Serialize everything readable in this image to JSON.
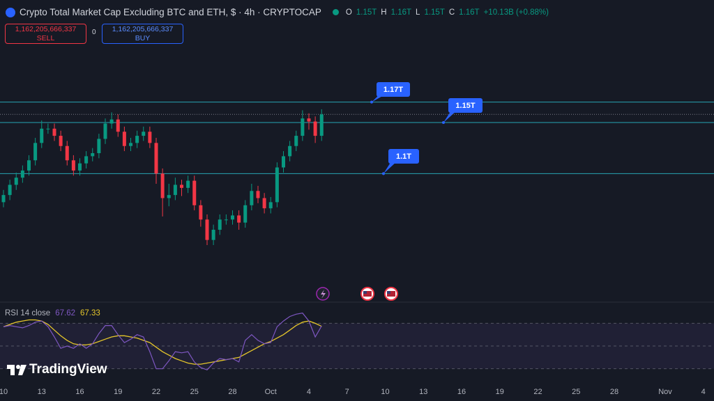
{
  "header": {
    "title": "Crypto Total Market Cap Excluding BTC and ETH, $ · 4h · CRYPTOCAP",
    "ohlc": [
      {
        "key": "O",
        "value": "1.15T"
      },
      {
        "key": "H",
        "value": "1.16T"
      },
      {
        "key": "L",
        "value": "1.15T"
      },
      {
        "key": "C",
        "value": "1.16T"
      }
    ],
    "change": "+10.13B (+0.88%)",
    "sell": {
      "price": "1,162,205,666,337",
      "label": "SELL"
    },
    "spread": "0",
    "buy": {
      "price": "1,162,205,666,337",
      "label": "BUY"
    }
  },
  "brand": "TradingView",
  "chart_data": {
    "type": "candlestick",
    "xlim": [
      -0.274,
      55.836
    ],
    "xticks": [
      {
        "value": 0,
        "label": "10"
      },
      {
        "value": 3,
        "label": "13"
      },
      {
        "value": 6,
        "label": "16"
      },
      {
        "value": 9,
        "label": "19"
      },
      {
        "value": 12,
        "label": "22"
      },
      {
        "value": 15,
        "label": "25"
      },
      {
        "value": 18,
        "label": "28"
      },
      {
        "value": 21,
        "label": "Oct"
      },
      {
        "value": 24,
        "label": "4"
      },
      {
        "value": 27,
        "label": "7"
      },
      {
        "value": 30,
        "label": "10"
      },
      {
        "value": 33,
        "label": "13"
      },
      {
        "value": 36,
        "label": "16"
      },
      {
        "value": 39,
        "label": "19"
      },
      {
        "value": 42,
        "label": "22"
      },
      {
        "value": 45,
        "label": "25"
      },
      {
        "value": 48,
        "label": "28"
      },
      {
        "value": 52,
        "label": "Nov"
      },
      {
        "value": 55,
        "label": "4"
      }
    ],
    "ylim": [
      0.97,
      1.27
    ],
    "up_color": "#089981",
    "down_color": "#f23645",
    "candles": {
      "x": [
        0,
        0.5,
        1,
        1.5,
        2,
        2.5,
        3,
        3.5,
        4,
        4.5,
        5,
        5.5,
        6,
        6.5,
        7,
        7.5,
        8,
        8.5,
        9,
        9.5,
        10,
        10.5,
        11,
        11.5,
        12,
        12.5,
        13,
        13.5,
        14,
        14.5,
        15,
        15.5,
        16,
        16.5,
        17,
        17.5,
        18,
        18.5,
        19,
        19.5,
        20,
        20.5,
        21,
        21.5,
        22,
        22.5,
        23,
        23.5,
        24,
        24.5,
        25
      ],
      "open": [
        1.072,
        1.079,
        1.089,
        1.096,
        1.103,
        1.113,
        1.13,
        1.144,
        1.144,
        1.137,
        1.127,
        1.113,
        1.103,
        1.11,
        1.117,
        1.12,
        1.134,
        1.149,
        1.153,
        1.141,
        1.127,
        1.13,
        1.137,
        1.141,
        1.13,
        1.1,
        1.076,
        1.079,
        1.089,
        1.086,
        1.093,
        1.069,
        1.055,
        1.035,
        1.045,
        1.055,
        1.055,
        1.059,
        1.052,
        1.069,
        1.083,
        1.076,
        1.066,
        1.072,
        1.106,
        1.117,
        1.127,
        1.137,
        1.154,
        1.151,
        1.137
      ],
      "high": [
        1.084,
        1.094,
        1.101,
        1.108,
        1.118,
        1.135,
        1.152,
        1.149,
        1.149,
        1.142,
        1.132,
        1.118,
        1.115,
        1.122,
        1.125,
        1.139,
        1.154,
        1.16,
        1.158,
        1.146,
        1.135,
        1.142,
        1.146,
        1.146,
        1.135,
        1.105,
        1.09,
        1.096,
        1.094,
        1.098,
        1.098,
        1.074,
        1.06,
        1.05,
        1.06,
        1.06,
        1.064,
        1.064,
        1.074,
        1.09,
        1.088,
        1.081,
        1.077,
        1.111,
        1.122,
        1.132,
        1.142,
        1.162,
        1.159,
        1.156,
        1.163
      ],
      "low": [
        1.067,
        1.074,
        1.084,
        1.091,
        1.098,
        1.108,
        1.125,
        1.139,
        1.132,
        1.122,
        1.108,
        1.098,
        1.098,
        1.105,
        1.112,
        1.115,
        1.129,
        1.144,
        1.136,
        1.122,
        1.122,
        1.125,
        1.132,
        1.125,
        1.09,
        1.058,
        1.068,
        1.074,
        1.078,
        1.081,
        1.064,
        1.048,
        1.03,
        1.03,
        1.04,
        1.05,
        1.05,
        1.045,
        1.047,
        1.064,
        1.071,
        1.061,
        1.061,
        1.067,
        1.101,
        1.112,
        1.122,
        1.132,
        1.143,
        1.13,
        1.132
      ],
      "close": [
        1.079,
        1.089,
        1.096,
        1.103,
        1.113,
        1.13,
        1.144,
        1.144,
        1.137,
        1.127,
        1.113,
        1.103,
        1.11,
        1.117,
        1.12,
        1.134,
        1.149,
        1.153,
        1.141,
        1.127,
        1.13,
        1.137,
        1.141,
        1.13,
        1.1,
        1.076,
        1.079,
        1.089,
        1.086,
        1.093,
        1.069,
        1.055,
        1.035,
        1.045,
        1.055,
        1.055,
        1.059,
        1.052,
        1.069,
        1.083,
        1.076,
        1.066,
        1.072,
        1.106,
        1.117,
        1.127,
        1.137,
        1.154,
        1.151,
        1.137,
        1.158
      ]
    },
    "levels": [
      {
        "value": 1.17,
        "label": "1.17T"
      },
      {
        "value": 1.15,
        "label": "1.15T"
      },
      {
        "value": 1.1,
        "label": "1.1T"
      }
    ],
    "level_color": "#26a5b5",
    "label_color": "#2962ff",
    "rsi": {
      "name": "RSI 14 close",
      "ylim": [
        20,
        88
      ],
      "levels": [
        70,
        50,
        30
      ],
      "color": "#7e57c2",
      "values": [
        66.9,
        68,
        67,
        66,
        68,
        71,
        72,
        67,
        58,
        48,
        50,
        48,
        52,
        48,
        52,
        61,
        68,
        68,
        60,
        53,
        56,
        60,
        58,
        45,
        30,
        30,
        37,
        45,
        44,
        45,
        36,
        31,
        29,
        35,
        39,
        38,
        39,
        36,
        55,
        60,
        55,
        52,
        53,
        67,
        72,
        76,
        78,
        79,
        72,
        58,
        67.62
      ],
      "ma": {
        "color": "#e5c62a",
        "values": [
          67,
          69,
          71,
          72,
          73,
          73,
          72,
          69,
          64,
          59,
          55,
          52,
          51,
          51,
          52,
          54,
          56,
          58,
          59,
          59,
          58,
          57,
          55,
          53,
          49,
          45,
          42,
          39,
          37,
          35,
          34,
          34,
          35,
          36,
          37,
          38,
          39,
          40,
          43,
          46,
          49,
          52,
          54,
          57,
          60,
          64,
          68,
          71,
          72,
          70,
          67.33
        ]
      }
    }
  }
}
